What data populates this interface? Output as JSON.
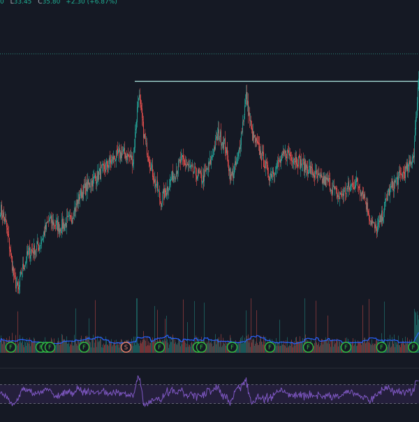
{
  "legend": {
    "open_tail": "0",
    "low_key": "L",
    "low_val": "33.45",
    "close_key": "C",
    "close_val": "35.80",
    "change": "+2.30 (+6.87%)"
  },
  "colors": {
    "background": "#151924",
    "up": "#26a69a",
    "down": "#ef5350",
    "resistance_line": "#a6dcd8",
    "price_dotted_line": "#2c8a7c",
    "volume_ma": "#2962ff",
    "rsi": "#7e57c2",
    "rsi_band": "#2a2143",
    "event_icon": "#2fbf3f",
    "split_icon": "#e8806b"
  },
  "price_lines": {
    "resistance_level": 35.4,
    "last_price_level": 35.8
  },
  "events": [
    {
      "type": "dividend",
      "letter": "F",
      "bar": 15
    },
    {
      "type": "dividend",
      "letter": "F",
      "bar": 58
    },
    {
      "type": "dividend",
      "letter": "F",
      "bar": 66
    },
    {
      "type": "dividend",
      "letter": "F",
      "bar": 71
    },
    {
      "type": "dividend",
      "letter": "F",
      "bar": 120
    },
    {
      "type": "split",
      "letter": "S",
      "bar": 180
    },
    {
      "type": "dividend",
      "letter": "F",
      "bar": 228
    },
    {
      "type": "dividend",
      "letter": "F",
      "bar": 283
    },
    {
      "type": "dividend",
      "letter": "F",
      "bar": 288
    },
    {
      "type": "dividend",
      "letter": "F",
      "bar": 332
    },
    {
      "type": "dividend",
      "letter": "F",
      "bar": 386
    },
    {
      "type": "dividend",
      "letter": "F",
      "bar": 441
    },
    {
      "type": "dividend",
      "letter": "F",
      "bar": 495
    },
    {
      "type": "dividend",
      "letter": "F",
      "bar": 546
    },
    {
      "type": "dividend",
      "letter": "F",
      "bar": 597
    }
  ],
  "rsi": {
    "upper_band": 70,
    "lower_band": 30
  },
  "chart_data": {
    "type": "candlestick",
    "price_keypoints": [
      [
        0,
        32.0
      ],
      [
        8,
        31.6
      ],
      [
        14,
        30.9
      ],
      [
        20,
        30.1
      ],
      [
        26,
        29.8
      ],
      [
        30,
        30.3
      ],
      [
        40,
        30.8
      ],
      [
        55,
        31.0
      ],
      [
        70,
        31.7
      ],
      [
        85,
        31.5
      ],
      [
        100,
        31.7
      ],
      [
        115,
        32.4
      ],
      [
        130,
        32.7
      ],
      [
        145,
        33.0
      ],
      [
        160,
        33.3
      ],
      [
        175,
        33.5
      ],
      [
        190,
        33.3
      ],
      [
        198,
        35.1
      ],
      [
        206,
        33.9
      ],
      [
        220,
        32.8
      ],
      [
        230,
        32.2
      ],
      [
        245,
        32.8
      ],
      [
        260,
        33.3
      ],
      [
        275,
        33.0
      ],
      [
        290,
        32.8
      ],
      [
        300,
        33.2
      ],
      [
        312,
        34.0
      ],
      [
        322,
        33.7
      ],
      [
        330,
        32.8
      ],
      [
        340,
        33.3
      ],
      [
        352,
        35.0
      ],
      [
        360,
        34.0
      ],
      [
        372,
        33.5
      ],
      [
        385,
        32.9
      ],
      [
        395,
        33.1
      ],
      [
        410,
        33.5
      ],
      [
        425,
        33.3
      ],
      [
        440,
        33.1
      ],
      [
        455,
        32.8
      ],
      [
        470,
        32.7
      ],
      [
        485,
        32.3
      ],
      [
        495,
        32.5
      ],
      [
        510,
        32.7
      ],
      [
        520,
        32.4
      ],
      [
        530,
        31.7
      ],
      [
        538,
        31.4
      ],
      [
        545,
        31.7
      ],
      [
        555,
        32.4
      ],
      [
        565,
        32.7
      ],
      [
        575,
        32.9
      ],
      [
        585,
        33.1
      ],
      [
        592,
        33.5
      ],
      [
        596,
        34.6
      ],
      [
        600,
        35.8
      ]
    ],
    "ylim": [
      28.8,
      37.2
    ],
    "bars": 600,
    "volume_range": [
      0,
      100
    ],
    "rsi_range": [
      0,
      100
    ]
  }
}
